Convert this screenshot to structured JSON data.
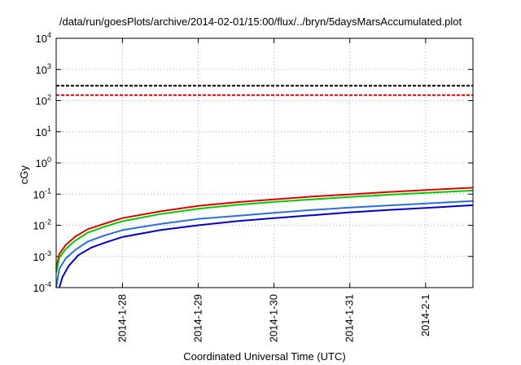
{
  "chart_data": {
    "type": "line",
    "title": "/data/run/goesPlots/archive/2014-02-01/15:00/flux/../bryn/5daysMarsAccumulated.plot",
    "xlabel": "Coordinated Universal Time (UTC)",
    "ylabel": "cGy",
    "y_scale": "log",
    "ylim": [
      0.0001,
      10000
    ],
    "xlim": [
      "2014-01-27 03:00",
      "2014-02-01 15:00"
    ],
    "x_tick_labels": [
      "2014-1-28",
      "2014-1-29",
      "2014-1-30",
      "2014-1-31",
      "2014-2-1"
    ],
    "y_ticks": [
      {
        "base": "10",
        "exp": "-4",
        "value": 0.0001
      },
      {
        "base": "10",
        "exp": "-3",
        "value": 0.001
      },
      {
        "base": "10",
        "exp": "-2",
        "value": 0.01
      },
      {
        "base": "10",
        "exp": "-1",
        "value": 0.1
      },
      {
        "base": "10",
        "exp": "0",
        "value": 1
      },
      {
        "base": "10",
        "exp": "1",
        "value": 10
      },
      {
        "base": "10",
        "exp": "2",
        "value": 100
      },
      {
        "base": "10",
        "exp": "3",
        "value": 1000
      },
      {
        "base": "10",
        "exp": "4",
        "value": 10000
      }
    ],
    "grid": true,
    "reference_lines": [
      {
        "value": 300,
        "color": "#000000",
        "style": "dashed"
      },
      {
        "value": 150,
        "color": "#e00000",
        "style": "dashed"
      }
    ],
    "series": [
      {
        "color": "#e00000",
        "x": [
          "2014-01-27 03:00",
          "2014-01-27 04:00",
          "2014-01-27 06:00",
          "2014-01-27 09:00",
          "2014-01-27 13:00",
          "2014-01-27 18:00",
          "2014-01-28 00:00",
          "2014-01-28 12:00",
          "2014-01-29 00:00",
          "2014-01-29 12:00",
          "2014-01-30 00:00",
          "2014-01-30 12:00",
          "2014-01-31 00:00",
          "2014-01-31 12:00",
          "2014-02-01 00:00",
          "2014-02-01 15:00"
        ],
        "y": [
          0.0004,
          0.0012,
          0.0023,
          0.0043,
          0.0075,
          0.011,
          0.017,
          0.028,
          0.042,
          0.055,
          0.068,
          0.083,
          0.098,
          0.116,
          0.135,
          0.16
        ]
      },
      {
        "color": "#00cc00",
        "x": [
          "2014-01-27 03:00",
          "2014-01-27 04:00",
          "2014-01-27 06:00",
          "2014-01-27 09:00",
          "2014-01-27 13:00",
          "2014-01-27 18:00",
          "2014-01-28 00:00",
          "2014-01-28 12:00",
          "2014-01-29 00:00",
          "2014-01-29 12:00",
          "2014-01-30 00:00",
          "2014-01-30 12:00",
          "2014-01-31 00:00",
          "2014-01-31 12:00",
          "2014-02-01 00:00",
          "2014-02-01 15:00"
        ],
        "y": [
          0.0003,
          0.0009,
          0.0017,
          0.0032,
          0.0058,
          0.0088,
          0.0135,
          0.023,
          0.034,
          0.045,
          0.056,
          0.068,
          0.081,
          0.095,
          0.11,
          0.13
        ]
      },
      {
        "color": "#2a6fdc",
        "x": [
          "2014-01-27 03:00",
          "2014-01-27 04:00",
          "2014-01-27 06:00",
          "2014-01-27 09:00",
          "2014-01-27 13:00",
          "2014-01-27 18:00",
          "2014-01-28 00:00",
          "2014-01-28 12:00",
          "2014-01-29 00:00",
          "2014-01-29 12:00",
          "2014-01-30 00:00",
          "2014-01-30 12:00",
          "2014-01-31 00:00",
          "2014-01-31 12:00",
          "2014-02-01 00:00",
          "2014-02-01 15:00"
        ],
        "y": [
          0.0001,
          0.0004,
          0.00085,
          0.0016,
          0.003,
          0.0046,
          0.007,
          0.011,
          0.016,
          0.02,
          0.025,
          0.031,
          0.037,
          0.043,
          0.05,
          0.06
        ]
      },
      {
        "color": "#0000cc",
        "x": [
          "2014-01-27 04:00",
          "2014-01-27 05:00",
          "2014-01-27 07:00",
          "2014-01-27 10:00",
          "2014-01-27 14:00",
          "2014-01-27 19:00",
          "2014-01-28 00:00",
          "2014-01-28 12:00",
          "2014-01-29 00:00",
          "2014-01-29 12:00",
          "2014-01-30 00:00",
          "2014-01-30 12:00",
          "2014-01-31 00:00",
          "2014-01-31 12:00",
          "2014-02-01 00:00",
          "2014-02-01 15:00"
        ],
        "y": [
          9e-05,
          0.00022,
          0.0005,
          0.0011,
          0.0019,
          0.0029,
          0.0042,
          0.007,
          0.01,
          0.0135,
          0.017,
          0.021,
          0.026,
          0.031,
          0.036,
          0.044
        ]
      }
    ]
  }
}
